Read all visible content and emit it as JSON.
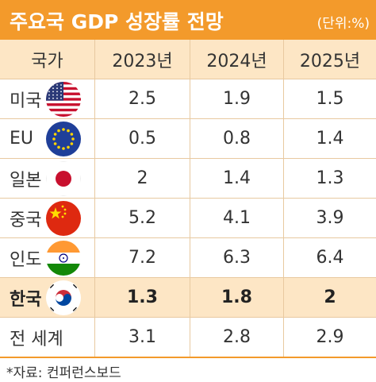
{
  "title": "주요국 GDP 성장률 전망",
  "unit": "(단위:%)",
  "source": "*자료: 컨퍼런스보드",
  "colors": {
    "header_bar": "#f39a2b",
    "highlight_row": "#fde6c5"
  },
  "chart_data": {
    "type": "table",
    "columns": [
      "국가",
      "2023년",
      "2024년",
      "2025년"
    ],
    "rows": [
      {
        "country": "미국",
        "flag_icon": "us-flag-icon",
        "values": [
          "2.5",
          "1.9",
          "1.5"
        ]
      },
      {
        "country": "EU",
        "flag_icon": "eu-flag-icon",
        "values": [
          "0.5",
          "0.8",
          "1.4"
        ]
      },
      {
        "country": "일본",
        "flag_icon": "japan-flag-icon",
        "values": [
          "2",
          "1.4",
          "1.3"
        ]
      },
      {
        "country": "중국",
        "flag_icon": "china-flag-icon",
        "values": [
          "5.2",
          "4.1",
          "3.9"
        ]
      },
      {
        "country": "인도",
        "flag_icon": "india-flag-icon",
        "values": [
          "7.2",
          "6.3",
          "6.4"
        ]
      },
      {
        "country": "한국",
        "flag_icon": "korea-flag-icon",
        "values": [
          "1.3",
          "1.8",
          "2"
        ],
        "highlight": true
      },
      {
        "country": "전 세계",
        "flag_icon": "",
        "values": [
          "3.1",
          "2.8",
          "2.9"
        ]
      }
    ]
  }
}
